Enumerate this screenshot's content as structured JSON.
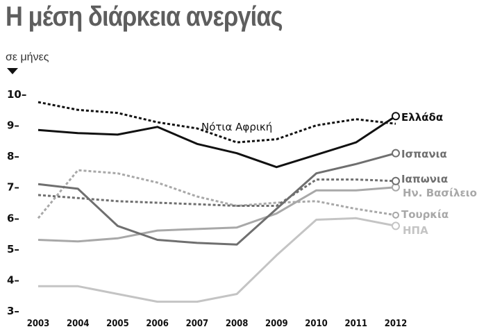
{
  "chart_data": {
    "type": "line",
    "title": "Η μέση διάρκεια ανεργίας",
    "ylabel": "σε μήνες",
    "xlabel": "",
    "ylim": [
      3,
      10
    ],
    "yticks": [
      10,
      9,
      8,
      7,
      6,
      5,
      4,
      3
    ],
    "x": [
      2003,
      2004,
      2005,
      2006,
      2007,
      2008,
      2009,
      2010,
      2011,
      2012
    ],
    "grid": false,
    "legend": "direct labels at line ends (right)",
    "series": [
      {
        "name": "Νότια Αφρική",
        "style": "dotted",
        "color": "#111111",
        "values": [
          9.75,
          9.5,
          9.4,
          9.1,
          8.9,
          8.45,
          8.55,
          9.0,
          9.2,
          9.05
        ]
      },
      {
        "name": "Ελλάδα",
        "style": "solid",
        "color": "#111111",
        "values": [
          8.85,
          8.75,
          8.7,
          8.95,
          8.4,
          8.1,
          7.65,
          8.05,
          8.45,
          9.3
        ]
      },
      {
        "name": "Ισπανια",
        "style": "solid",
        "color": "#6f6f6f",
        "values": [
          7.1,
          6.95,
          5.75,
          5.3,
          5.2,
          5.15,
          6.3,
          7.45,
          7.75,
          8.1
        ]
      },
      {
        "name": "Ιαπωνια",
        "style": "dotted",
        "color": "#6f6f6f",
        "values": [
          6.75,
          6.65,
          6.55,
          6.5,
          6.45,
          6.4,
          6.4,
          7.25,
          7.25,
          7.2
        ]
      },
      {
        "name": "Ην. Βασίλειο",
        "style": "solid",
        "color": "#a8a8a8",
        "values": [
          5.3,
          5.25,
          5.35,
          5.6,
          5.65,
          5.7,
          6.15,
          6.9,
          6.9,
          7.0
        ]
      },
      {
        "name": "Τουρκία",
        "style": "dotted",
        "color": "#a8a8a8",
        "values": [
          6.0,
          7.55,
          7.45,
          7.15,
          6.7,
          6.4,
          6.5,
          6.55,
          6.3,
          6.1
        ]
      },
      {
        "name": "ΗΠΑ",
        "style": "solid",
        "color": "#c4c4c4",
        "values": [
          3.8,
          3.8,
          3.55,
          3.3,
          3.3,
          3.55,
          4.8,
          5.95,
          6.0,
          5.75
        ]
      }
    ]
  },
  "labels": {
    "title": "Η μέση διάρκεια ανεργίας",
    "unit": "σε μήνες",
    "south_africa": "Νότια Αφρική",
    "greece": "Ελλάδα",
    "spain": "Ισπανια",
    "japan": "Ιαπωνια",
    "uk": "Ην. Βασίλειο",
    "turkey": "Τουρκία",
    "usa": "ΗΠΑ"
  },
  "axis": {
    "y": [
      "10",
      "9",
      "8",
      "7",
      "6",
      "5",
      "4",
      "3"
    ],
    "x": [
      "2003",
      "2004",
      "2005",
      "2006",
      "2007",
      "2008",
      "2009",
      "2010",
      "2011",
      "2012"
    ]
  }
}
